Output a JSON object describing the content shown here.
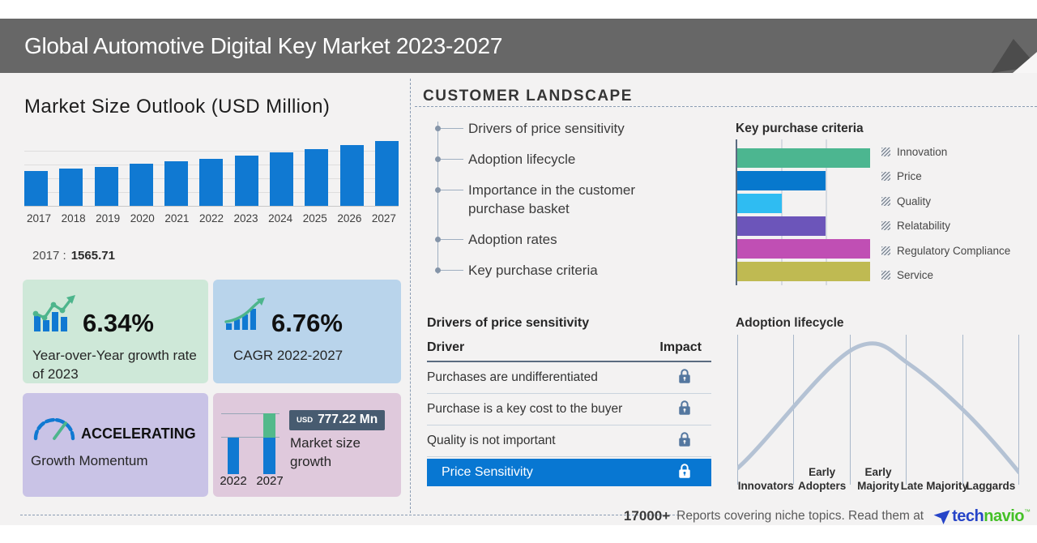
{
  "header": {
    "title": "Global Automotive Digital Key Market 2023-2027"
  },
  "colors": {
    "header_gray": "#676767",
    "accent_blue": "#1079d2",
    "accent_green": "#4db58c",
    "highlight_row_blue": "#0877d2",
    "lock_blue_gray": "#54779f",
    "badge_slate": "#475b70",
    "curve_gray_blue": "#b4c2d4",
    "brand_blue": "#2644c8",
    "brand_green": "#44c027",
    "card_green_bg": "#cee8d8",
    "card_blue_bg": "#b9d4eb",
    "card_purple_bg": "#c9c3e6",
    "card_pink_bg": "#dfc9dc"
  },
  "market": {
    "note_label": "2017 :",
    "note_value": "1565.71"
  },
  "cards": {
    "yoy": {
      "value": "6.34%",
      "label": "Year-over-Year growth rate of 2023"
    },
    "cagr": {
      "value": "6.76%",
      "label": "CAGR 2022-2027"
    },
    "momentum": {
      "value": "ACCELERATING",
      "label": "Growth Momentum"
    },
    "growth": {
      "currency": "USD",
      "amount": "777.22 Mn",
      "label": "Market size growth"
    }
  },
  "customer_landscape": {
    "title": "CUSTOMER LANDSCAPE",
    "items": [
      "Drivers of price sensitivity",
      "Adoption lifecycle",
      "Importance in the customer purchase basket",
      "Adoption rates",
      "Key purchase criteria"
    ]
  },
  "price_table": {
    "title": "Drivers of price sensitivity",
    "columns": [
      "Driver",
      "Impact"
    ],
    "rows": [
      "Purchases are undifferentiated",
      "Purchase is a key cost to the buyer",
      "Quality is not important"
    ],
    "highlight_row": "Price Sensitivity"
  },
  "footer": {
    "count": "17000+",
    "text": "Reports covering niche topics. Read them at",
    "brand_part1": "tech",
    "brand_part2": "navio",
    "trademark": "™"
  },
  "chart_data": [
    {
      "id": "market_size_outlook",
      "type": "bar",
      "title": "Market Size Outlook (USD Million)",
      "unit": "USD Million",
      "categories": [
        "2017",
        "2018",
        "2019",
        "2020",
        "2021",
        "2022",
        "2023",
        "2024",
        "2025",
        "2026",
        "2027"
      ],
      "values": [
        1565.71,
        1665,
        1770,
        1885,
        2005,
        2135,
        2270,
        2420,
        2575,
        2745,
        2925
      ],
      "values_note": "only 2017 labeled on image (1565.71); later values estimated from bar heights",
      "labeled_point": {
        "year": "2017",
        "value": 1565.71
      },
      "ylim": [
        0,
        3000
      ],
      "grid": true,
      "bar_color": "#1079d2"
    },
    {
      "id": "key_purchase_criteria",
      "type": "bar",
      "orientation": "horizontal",
      "title": "Key purchase criteria",
      "categories": [
        "Innovation",
        "Price",
        "Quality",
        "Relatability",
        "Regulatory Compliance",
        "Service"
      ],
      "values": [
        3,
        2,
        1,
        2,
        3,
        3
      ],
      "values_note": "relative lengths in gridline units, estimated (no numeric axis labels shown)",
      "colors": [
        "#4cb690",
        "#0778cd",
        "#2fbcf2",
        "#6c55ba",
        "#c04fb4",
        "#bfba52"
      ],
      "legend_position": "right",
      "grid": true
    },
    {
      "id": "market_size_growth",
      "type": "bar",
      "title": "Market size growth",
      "categories": [
        "2022",
        "2027"
      ],
      "values": [
        1,
        1.67
      ],
      "values_note": "relative bar heights estimated; incremental growth shown as green segment",
      "annotation": "USD 777.22 Mn",
      "colors": {
        "base": "#1079d2",
        "increment": "#53b98b"
      }
    },
    {
      "id": "adoption_lifecycle",
      "type": "area",
      "title": "Adoption lifecycle",
      "categories": [
        "Innovators",
        "Early Adopters",
        "Early Majority",
        "Late Majority",
        "Laggards"
      ],
      "shape": "bell curve rising from Innovators, peaking at Early Majority, falling to Laggards",
      "curve_color": "#b4c2d4",
      "grid": true
    }
  ]
}
